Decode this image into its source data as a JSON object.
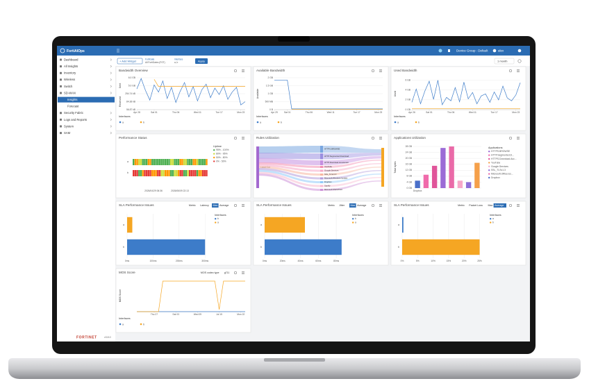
{
  "header": {
    "brand": "FortiAIOps",
    "device_group": "Device Group : Default",
    "user": "alex"
  },
  "toolbar": {
    "add_widget": "+ Add Widget",
    "filter1_label": "FortiGate",
    "filter1_value": "All FortiGates (FGT)",
    "filter2_label": "Interface",
    "filter2_value": "a, b",
    "apply": "Apply",
    "range": "1 month"
  },
  "sidebar": {
    "items": [
      "Dashboard",
      "All Insights",
      "Inventory",
      "Wireless",
      "Switch",
      "SD-WAN"
    ],
    "sub_items": [
      "Insights",
      "Forecast"
    ],
    "selected_sub_item": 0,
    "items_after": [
      "Security Fabric",
      "Logs and Reports",
      "System",
      "SAM"
    ],
    "footer_logo": "FORTINET",
    "version": "v3.8.0"
  },
  "widgets": [
    {
      "title": "Bandwidth Overview",
      "chart": {
        "type": "line",
        "y_labels": [
          "Sent",
          "Received"
        ],
        "xlim": [
          0,
          25
        ],
        "xticks": [
          {
            "value": 0,
            "label": "Apr 28"
          },
          {
            "value": 4,
            "label": "Sat 01"
          },
          {
            "value": 9,
            "label": "Thu 06"
          },
          {
            "value": 14,
            "label": "Wed 11"
          },
          {
            "value": 19,
            "label": "Tue 17"
          },
          {
            "value": 24,
            "label": "Mon 23"
          }
        ],
        "ylim": [
          0,
          4
        ],
        "yticks": [
          {
            "value": 4,
            "label": "6.0 GB"
          },
          {
            "value": 3,
            "label": "5.0 GB"
          },
          {
            "value": 2,
            "label": "254.74 kB"
          },
          {
            "value": 1,
            "label": "84.36 kB"
          },
          {
            "value": 0,
            "label": "56.87 kB"
          }
        ],
        "legend_title": "Interfaces",
        "series": [
          {
            "name": "a",
            "color": "#3d7cc9",
            "values": [
              2.6,
              3.9,
              2.4,
              1.2,
              3.1,
              2.2,
              3.6,
              1.4,
              2.8,
              0.9,
              2.3,
              3.4,
              1.6,
              2.9,
              1.1,
              2.5,
              3.2,
              1.5,
              2.7,
              1.9,
              3.0,
              1.3,
              2.2,
              2.8,
              0.6,
              1.0
            ]
          },
          {
            "name": "b",
            "color": "#f5a623",
            "values": [
              null,
              null,
              null,
              null,
              3.8,
              2.9,
              2.9,
              2.9,
              2.9,
              2.9,
              2.9,
              2.9,
              2.9,
              2.9,
              2.9,
              2.9,
              2.9,
              2.9,
              2.9,
              2.9,
              2.9,
              2.9,
              2.9,
              2.9,
              2.9,
              2.9
            ]
          }
        ]
      }
    },
    {
      "title": "Available Bandwidth",
      "chart": {
        "type": "line",
        "y_labels": [
          "Available"
        ],
        "xlim": [
          0,
          25
        ],
        "xticks": [
          {
            "value": 0,
            "label": "Apr 29"
          },
          {
            "value": 3,
            "label": "Sat 01"
          },
          {
            "value": 8,
            "label": "Thu 06"
          },
          {
            "value": 13,
            "label": "Wed 11"
          },
          {
            "value": 19,
            "label": "Tue 17"
          },
          {
            "value": 24,
            "label": "Mon 23"
          }
        ],
        "ylim": [
          0,
          2
        ],
        "yticks": [
          {
            "value": 2,
            "label": "2 GB"
          },
          {
            "value": 1.5,
            "label": "1.5 GB"
          },
          {
            "value": 1,
            "label": "1 GB"
          },
          {
            "value": 0.5,
            "label": "500 MB"
          },
          {
            "value": 0,
            "label": "0 B"
          }
        ],
        "legend_title": "Interfaces",
        "series": [
          {
            "name": "a",
            "color": "#3d7cc9",
            "values": [
              1.85,
              1.85,
              1.85,
              1.85,
              0.05,
              0.05,
              0.05,
              0.05,
              0.05,
              0.05,
              0.05,
              0.05,
              0.05,
              0.05,
              0.05,
              0.05,
              0.05,
              0.05,
              0.05,
              0.05,
              0.05,
              0.05,
              0.05,
              0.05,
              0.05,
              0.05
            ]
          },
          {
            "name": "b",
            "color": "#f5a623",
            "values": [
              null,
              null,
              null,
              null,
              0.02,
              0.02,
              0.02,
              0.02,
              0.02,
              0.02,
              0.02,
              0.02,
              0.02,
              0.02,
              0.02,
              0.02,
              0.02,
              0.02,
              0.02,
              0.02,
              0.02,
              0.02,
              0.02,
              0.02,
              0.02,
              0.02
            ]
          }
        ]
      }
    },
    {
      "title": "Used Bandwidth",
      "chart": {
        "type": "line",
        "y_labels": [
          "Used"
        ],
        "xlim": [
          0,
          25
        ],
        "xticks": [
          {
            "value": 0,
            "label": "Apr 26"
          },
          {
            "value": 4,
            "label": "Sat 01"
          },
          {
            "value": 9,
            "label": "Thu 06"
          },
          {
            "value": 14,
            "label": "Wed 11"
          },
          {
            "value": 19,
            "label": "Tue 17"
          },
          {
            "value": 24,
            "label": "Mon 23"
          }
        ],
        "ylim": [
          0,
          6.5
        ],
        "yticks": [
          {
            "value": 6,
            "label": "6 GB"
          },
          {
            "value": 4,
            "label": "4 GB"
          },
          {
            "value": 2,
            "label": "2 GB"
          },
          {
            "value": 0,
            "label": "0 GB"
          }
        ],
        "legend_title": "Interfaces",
        "series": [
          {
            "name": "a",
            "color": "#3d7cc9",
            "values": [
              1.5,
              4.2,
              1.2,
              3.8,
              5.8,
              2.1,
              6.0,
              1.0,
              2.5,
              1.8,
              4.5,
              1.6,
              5.6,
              2.2,
              3.5,
              1.2,
              2.8,
              3.2,
              1.5,
              3.6,
              2.0,
              4.8,
              2.4,
              1.8,
              3.0,
              5.5
            ]
          },
          {
            "name": "b",
            "color": "#f5a623",
            "values": [
              0.2,
              0.2,
              0.2,
              0.2,
              0.2,
              0.2,
              0.2,
              0.2,
              0.2,
              0.2,
              0.2,
              0.2,
              0.2,
              0.2,
              0.2,
              0.2,
              0.2,
              0.2,
              0.2,
              0.2,
              0.2,
              0.2,
              0.2,
              0.2,
              0.2,
              0.2
            ]
          }
        ]
      }
    },
    {
      "title": "Performance Status",
      "status": {
        "rows": [
          "a",
          "b"
        ],
        "x_labels": [
          "2026/04/29 06:36",
          "2026/06/09 22:13"
        ],
        "legend_title": "Uptime",
        "legend": [
          {
            "label": "95% - 100%",
            "color": "#4caf50"
          },
          {
            "label": "80% - 95%",
            "color": "#cddc39"
          },
          {
            "label": "50% - 80%",
            "color": "#ff9800"
          },
          {
            "label": "0% - 50%",
            "color": "#e53935"
          }
        ]
      }
    },
    {
      "title": "Rules Utilization",
      "sankey": {
        "source": "Local Out",
        "source_color": "#a46ad0",
        "sink_color": "#f5a623",
        "targets": [
          {
            "label": "HTTPS.BROWSE",
            "color": "#7aa7e0"
          },
          {
            "label": "HTTP.Segmented.Download",
            "color": "#9b8fe0"
          },
          {
            "label": "HTTP.Download.Accelerator",
            "color": "#c58fe0"
          },
          {
            "label": "YouTube",
            "color": "#f48fb1"
          },
          {
            "label": "Google.Services",
            "color": "#f6a8c6"
          },
          {
            "label": "SSL_TLSv1.3",
            "color": "#f7b6a0"
          },
          {
            "label": "Microsoft.Windows.Update",
            "color": "#b39ddb"
          },
          {
            "label": "Dropbox",
            "color": "#90caf9"
          },
          {
            "label": "Spotify",
            "color": "#f8bbd0"
          },
          {
            "label": "Microsoft.SharePoint",
            "color": "#ce93d8"
          }
        ]
      }
    },
    {
      "title": "Applications Utilization",
      "chart": {
        "type": "bar",
        "y_labels": [
          "Total bytes"
        ],
        "categories": [
          "Dropbox",
          null,
          null,
          null,
          null,
          null,
          null,
          null
        ],
        "values": [
          5,
          9,
          15,
          27,
          28,
          5,
          4,
          17
        ],
        "colors": [
          "#4a6fc9",
          "#f06bab",
          "#e0559a",
          "#9b6bd6",
          "#ea6aa8",
          "#f7a8c8",
          "#8e6fd8",
          "#f5a04a"
        ],
        "ylim": [
          0,
          28
        ],
        "yticks": [
          {
            "value": 28,
            "label": "28 GB"
          },
          {
            "value": 24,
            "label": "24 GB"
          },
          {
            "value": 20,
            "label": "20 GB"
          },
          {
            "value": 16,
            "label": "16 GB"
          },
          {
            "value": 12,
            "label": "12 GB"
          },
          {
            "value": 8,
            "label": "8 GB"
          },
          {
            "value": 4,
            "label": "4 GB"
          },
          {
            "value": 0,
            "label": "0 GB"
          }
        ],
        "legend_title": "Applications",
        "legend": [
          {
            "name": "HTTPS.BROWSE",
            "color": "#9b6bd6"
          },
          {
            "name": "HTTP.Segmented.D...",
            "color": "#f06bab"
          },
          {
            "name": "HTTPS.Download.Acc...",
            "color": "#e0559a"
          },
          {
            "name": "YouTube",
            "color": "#f5a04a"
          },
          {
            "name": "Google.Services",
            "color": "#f7a8c8"
          },
          {
            "name": "SSL_TLSv1.3",
            "color": "#8e6fd8"
          },
          {
            "name": "Microsoft.Office.Iss...",
            "color": "#ea6aa8"
          },
          {
            "name": "Dropbox",
            "color": "#4a6fc9"
          }
        ]
      }
    },
    {
      "title": "SLA Performance Issues",
      "controls": [
        "Metric",
        "Latency",
        "Max",
        "Average"
      ],
      "selected_control": 2,
      "chart": {
        "type": "hbar",
        "categories": [
          "a",
          "b"
        ],
        "values": [
          20,
          300
        ],
        "colors": [
          "#f5a623",
          "#3d7cc9"
        ],
        "xlim": [
          0,
          310
        ],
        "xticks": [
          {
            "value": 0,
            "label": "0ms"
          },
          {
            "value": 100,
            "label": "100ms"
          },
          {
            "value": 200,
            "label": "200ms"
          },
          {
            "value": 300,
            "label": "300ms"
          }
        ],
        "legend_title": "Interfaces",
        "legend": [
          {
            "name": "b",
            "color": "#3d7cc9"
          },
          {
            "name": "a",
            "color": "#f5a623"
          }
        ]
      }
    },
    {
      "title": "SLA Performance Issues",
      "controls": [
        "Metric",
        "Jitter",
        "Max",
        "Average"
      ],
      "selected_control": 2,
      "chart": {
        "type": "hbar",
        "categories": [
          "a",
          "b"
        ],
        "values": [
          45,
          86
        ],
        "colors": [
          "#f5a623",
          "#3d7cc9"
        ],
        "xlim": [
          0,
          90
        ],
        "xticks": [
          {
            "value": 0,
            "label": "0ms"
          },
          {
            "value": 20,
            "label": "20ms"
          },
          {
            "value": 40,
            "label": "40ms"
          },
          {
            "value": 60,
            "label": "60ms"
          },
          {
            "value": 80,
            "label": "80ms"
          }
        ],
        "legend_title": "Interfaces",
        "legend": [
          {
            "name": "b",
            "color": "#3d7cc9"
          },
          {
            "name": "a",
            "color": "#f5a623"
          }
        ]
      }
    },
    {
      "title": "SLA Performance Issues",
      "controls": [
        "Metric",
        "Packet Loss",
        "Max",
        "Average"
      ],
      "selected_control": 3,
      "chart": {
        "type": "hbar",
        "categories": [
          "a",
          "b"
        ],
        "values": [
          0.4,
          25
        ],
        "colors": [
          "#3d7cc9",
          "#f5a623"
        ],
        "xlim": [
          0,
          26
        ],
        "xticks": [
          {
            "value": 0,
            "label": "0%"
          },
          {
            "value": 5,
            "label": "5%"
          },
          {
            "value": 10,
            "label": "10%"
          },
          {
            "value": 15,
            "label": "15%"
          },
          {
            "value": 20,
            "label": "20%"
          },
          {
            "value": 25,
            "label": "25%"
          }
        ],
        "legend_title": "Interfaces",
        "legend": [
          {
            "name": "a",
            "color": "#3d7cc9"
          },
          {
            "name": "b",
            "color": "#f5a623"
          }
        ]
      }
    },
    {
      "title": "MOS Score",
      "controls": [
        "MOS codec type",
        "g711"
      ],
      "chart": {
        "type": "line",
        "y_labels": [
          "MOS Score"
        ],
        "xlim": [
          0,
          25
        ],
        "xticks": [
          {
            "value": 4,
            "label": "Thu 27"
          },
          {
            "value": 9,
            "label": "Sat 03"
          },
          {
            "value": 14,
            "label": "Wed 09"
          },
          {
            "value": 19,
            "label": "Jul 15"
          },
          {
            "value": 24,
            "label": "Mon 22"
          }
        ],
        "ylim": [
          0,
          4.6
        ],
        "legend_title": "Interfaces",
        "series": [
          {
            "name": "a",
            "color": "#3d7cc9",
            "values": [
              0,
              0,
              0,
              0,
              0,
              0,
              0,
              0,
              0,
              0,
              0,
              0,
              0,
              0,
              0,
              0,
              0,
              0,
              0,
              0,
              0,
              0,
              0,
              0,
              0,
              0
            ]
          },
          {
            "name": "b",
            "color": "#f5a623",
            "values": [
              0,
              0,
              0,
              0,
              0,
              0,
              4.4,
              4.4,
              4.4,
              4.4,
              4.4,
              4.4,
              4.4,
              4.4,
              4.4,
              4.4,
              4.4,
              4.4,
              4.4,
              0.3,
              4.4,
              4.4,
              4.4,
              4.4,
              4.4,
              4.4
            ]
          }
        ]
      }
    }
  ]
}
